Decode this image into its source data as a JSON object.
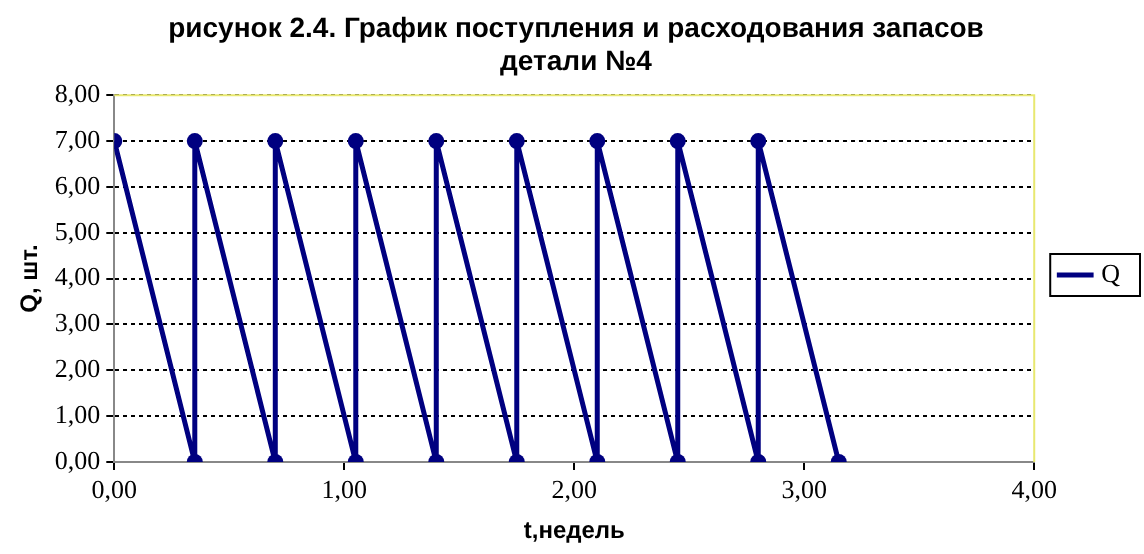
{
  "chart_data": {
    "type": "line",
    "title": [
      "рисунок 2.4. График поступления и расходования запасов",
      "детали №4"
    ],
    "xlabel": "t,недель",
    "ylabel": "Q, шт.",
    "x": [
      0,
      0.35,
      0.35,
      0.7,
      0.7,
      1.05,
      1.05,
      1.4,
      1.4,
      1.75,
      1.75,
      2.1,
      2.1,
      2.45,
      2.45,
      2.8,
      2.8,
      3.15
    ],
    "series": [
      {
        "name": "Q",
        "color": "#000080",
        "values": [
          7,
          0,
          7,
          0,
          7,
          0,
          7,
          0,
          7,
          0,
          7,
          0,
          7,
          0,
          7,
          0,
          7,
          0
        ]
      }
    ],
    "xlim": [
      0,
      4
    ],
    "xticks": [
      {
        "value": 0,
        "label": "0,00"
      },
      {
        "value": 1,
        "label": "1,00"
      },
      {
        "value": 2,
        "label": "2,00"
      },
      {
        "value": 3,
        "label": "3,00"
      },
      {
        "value": 4,
        "label": "4,00"
      }
    ],
    "ylim": [
      0,
      8
    ],
    "yticks": [
      {
        "value": 0,
        "label": "0,00"
      },
      {
        "value": 1,
        "label": "1,00"
      },
      {
        "value": 2,
        "label": "2,00"
      },
      {
        "value": 3,
        "label": "3,00"
      },
      {
        "value": 4,
        "label": "4,00"
      },
      {
        "value": 5,
        "label": "5,00"
      },
      {
        "value": 6,
        "label": "6,00"
      },
      {
        "value": 7,
        "label": "7,00"
      },
      {
        "value": 8,
        "label": "8,00"
      }
    ],
    "grid": "y",
    "legend": "right",
    "marker": "circle",
    "line_style": "solid"
  }
}
